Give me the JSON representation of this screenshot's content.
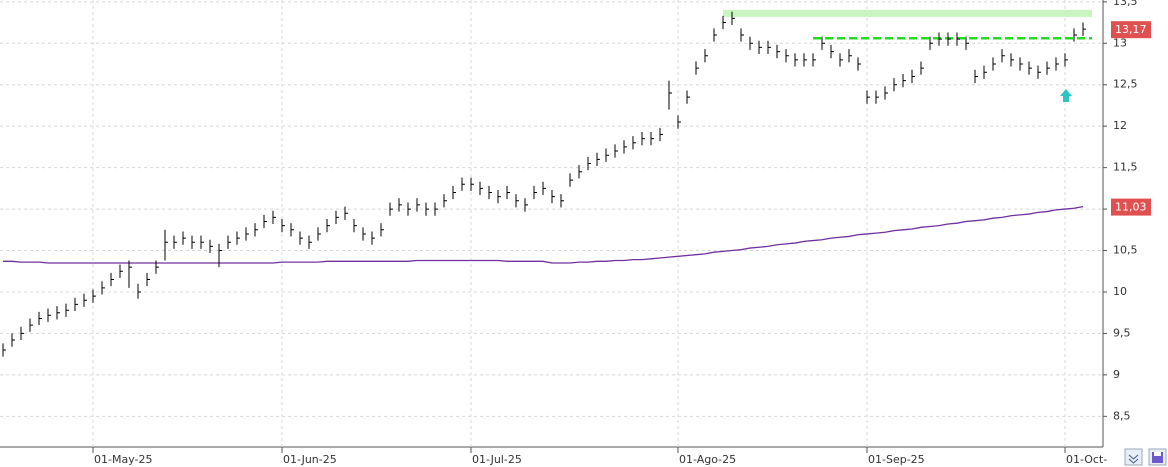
{
  "chart_data": {
    "type": "ohlc",
    "ylim": [
      8.13,
      13.51
    ],
    "yticks": [
      {
        "value": 8.5,
        "label": "8,5"
      },
      9,
      {
        "value": 9.5,
        "label": "9,5"
      },
      10,
      {
        "value": 10.5,
        "label": "10,5"
      },
      11,
      {
        "value": 11.5,
        "label": "11,5"
      },
      12,
      {
        "value": 12.5,
        "label": "12,5"
      },
      13,
      {
        "value": 13.5,
        "label": "13,5"
      }
    ],
    "grid": true,
    "categories": [
      null,
      null,
      null,
      null,
      null,
      null,
      null,
      null,
      null,
      null,
      "01-May-25",
      null,
      null,
      null,
      null,
      null,
      null,
      null,
      null,
      null,
      null,
      null,
      null,
      null,
      null,
      null,
      null,
      null,
      null,
      null,
      null,
      "01-Jun-25",
      null,
      null,
      null,
      null,
      null,
      null,
      null,
      null,
      null,
      null,
      null,
      null,
      null,
      null,
      null,
      null,
      null,
      null,
      null,
      null,
      "01-Jul-25",
      null,
      null,
      null,
      null,
      null,
      null,
      null,
      null,
      null,
      null,
      null,
      null,
      null,
      null,
      null,
      null,
      null,
      null,
      null,
      null,
      null,
      null,
      "01-Ago-25",
      null,
      null,
      null,
      null,
      null,
      null,
      null,
      null,
      null,
      null,
      null,
      null,
      null,
      null,
      null,
      null,
      null,
      null,
      null,
      null,
      "01-Sep-25",
      null,
      null,
      null,
      null,
      null,
      null,
      null,
      null,
      null,
      null,
      null,
      null,
      null,
      null,
      null,
      null,
      null,
      null,
      null,
      null,
      null,
      "01-Oct-",
      null,
      null
    ],
    "ohlc": {
      "color": "#000000",
      "last_label": "13,17",
      "close": [
        9.3,
        9.42,
        9.5,
        9.6,
        9.68,
        9.72,
        9.75,
        9.78,
        9.85,
        9.9,
        9.95,
        10.05,
        10.15,
        10.25,
        10.3,
        10.0,
        10.15,
        10.3,
        10.6,
        10.6,
        10.65,
        10.6,
        10.6,
        10.55,
        10.5,
        10.6,
        10.65,
        10.7,
        10.75,
        10.85,
        10.9,
        10.8,
        10.75,
        10.65,
        10.6,
        10.7,
        10.8,
        10.9,
        10.95,
        10.8,
        10.7,
        10.65,
        10.75,
        11.0,
        11.05,
        11.0,
        11.05,
        11.0,
        11.0,
        11.1,
        11.2,
        11.3,
        11.3,
        11.25,
        11.2,
        11.15,
        11.2,
        11.1,
        11.05,
        11.2,
        11.25,
        11.15,
        11.1,
        11.35,
        11.45,
        11.55,
        11.6,
        11.65,
        11.7,
        11.75,
        11.8,
        11.85,
        11.85,
        11.9,
        12.4,
        12.05,
        12.35,
        12.7,
        12.85,
        13.1,
        13.25,
        13.3,
        13.1,
        13.0,
        12.95,
        12.95,
        12.9,
        12.85,
        12.8,
        12.8,
        12.8,
        13.0,
        12.9,
        12.8,
        12.85,
        12.75,
        12.35,
        12.35,
        12.4,
        12.5,
        12.55,
        12.6,
        12.7,
        13.0,
        13.05,
        13.05,
        13.05,
        13.0,
        12.6,
        12.65,
        12.75,
        12.85,
        12.8,
        12.75,
        12.7,
        12.65,
        12.7,
        12.75,
        12.8,
        13.1,
        13.17
      ],
      "high": [
        9.38,
        9.5,
        9.58,
        9.68,
        9.76,
        9.8,
        9.83,
        9.86,
        9.93,
        9.98,
        10.03,
        10.13,
        10.23,
        10.33,
        10.38,
        10.1,
        10.23,
        10.38,
        10.75,
        10.68,
        10.73,
        10.68,
        10.68,
        10.63,
        10.58,
        10.68,
        10.73,
        10.78,
        10.83,
        10.93,
        10.98,
        10.88,
        10.83,
        10.73,
        10.68,
        10.78,
        10.88,
        10.98,
        11.03,
        10.88,
        10.78,
        10.73,
        10.83,
        11.08,
        11.13,
        11.08,
        11.13,
        11.08,
        11.08,
        11.18,
        11.28,
        11.38,
        11.38,
        11.33,
        11.28,
        11.23,
        11.28,
        11.18,
        11.13,
        11.28,
        11.33,
        11.23,
        11.18,
        11.43,
        11.53,
        11.63,
        11.68,
        11.73,
        11.78,
        11.83,
        11.88,
        11.93,
        11.93,
        11.98,
        12.55,
        12.13,
        12.43,
        12.78,
        12.93,
        13.18,
        13.33,
        13.38,
        13.18,
        13.08,
        13.03,
        13.03,
        12.98,
        12.93,
        12.88,
        12.88,
        12.88,
        13.08,
        12.98,
        12.88,
        12.93,
        12.83,
        12.43,
        12.43,
        12.48,
        12.58,
        12.63,
        12.68,
        12.78,
        13.08,
        13.13,
        13.13,
        13.13,
        13.08,
        12.68,
        12.73,
        12.83,
        12.93,
        12.88,
        12.83,
        12.78,
        12.73,
        12.78,
        12.83,
        12.88,
        13.18,
        13.25
      ],
      "low": [
        9.22,
        9.34,
        9.42,
        9.52,
        9.6,
        9.64,
        9.67,
        9.7,
        9.77,
        9.82,
        9.87,
        9.97,
        10.07,
        10.17,
        10.05,
        9.92,
        10.07,
        10.22,
        10.38,
        10.52,
        10.57,
        10.52,
        10.52,
        10.47,
        10.3,
        10.52,
        10.57,
        10.62,
        10.67,
        10.77,
        10.82,
        10.72,
        10.67,
        10.57,
        10.52,
        10.62,
        10.72,
        10.82,
        10.87,
        10.72,
        10.62,
        10.57,
        10.67,
        10.92,
        10.97,
        10.92,
        10.97,
        10.92,
        10.92,
        11.02,
        11.12,
        11.22,
        11.22,
        11.17,
        11.12,
        11.07,
        11.12,
        11.02,
        10.97,
        11.12,
        11.17,
        11.07,
        11.02,
        11.27,
        11.37,
        11.47,
        11.52,
        11.57,
        11.62,
        11.67,
        11.72,
        11.77,
        11.77,
        11.82,
        12.2,
        11.97,
        12.27,
        12.62,
        12.77,
        13.02,
        13.17,
        13.22,
        13.02,
        12.92,
        12.87,
        12.87,
        12.82,
        12.77,
        12.72,
        12.72,
        12.72,
        12.92,
        12.82,
        12.72,
        12.77,
        12.67,
        12.27,
        12.27,
        12.32,
        12.42,
        12.47,
        12.52,
        12.62,
        12.92,
        12.97,
        12.97,
        12.97,
        12.92,
        12.52,
        12.57,
        12.67,
        12.77,
        12.72,
        12.67,
        12.62,
        12.57,
        12.62,
        12.67,
        12.72,
        13.02,
        13.09
      ]
    },
    "ma": {
      "color": "#7030a0",
      "last_label": "11,03",
      "values": [
        10.37,
        10.37,
        10.36,
        10.36,
        10.36,
        10.35,
        10.35,
        10.35,
        10.35,
        10.35,
        10.35,
        10.35,
        10.35,
        10.35,
        10.35,
        10.35,
        10.35,
        10.35,
        10.35,
        10.35,
        10.35,
        10.35,
        10.35,
        10.35,
        10.35,
        10.35,
        10.35,
        10.35,
        10.35,
        10.35,
        10.35,
        10.36,
        10.36,
        10.36,
        10.36,
        10.36,
        10.37,
        10.37,
        10.37,
        10.37,
        10.37,
        10.37,
        10.37,
        10.37,
        10.37,
        10.37,
        10.38,
        10.38,
        10.38,
        10.38,
        10.38,
        10.38,
        10.38,
        10.38,
        10.38,
        10.38,
        10.37,
        10.37,
        10.37,
        10.37,
        10.37,
        10.35,
        10.35,
        10.35,
        10.36,
        10.36,
        10.37,
        10.37,
        10.38,
        10.38,
        10.39,
        10.39,
        10.4,
        10.41,
        10.42,
        10.43,
        10.44,
        10.45,
        10.46,
        10.48,
        10.49,
        10.5,
        10.51,
        10.53,
        10.54,
        10.55,
        10.57,
        10.58,
        10.59,
        10.61,
        10.62,
        10.63,
        10.65,
        10.66,
        10.67,
        10.69,
        10.7,
        10.71,
        10.72,
        10.74,
        10.75,
        10.76,
        10.78,
        10.79,
        10.8,
        10.82,
        10.83,
        10.85,
        10.86,
        10.87,
        10.89,
        10.9,
        10.92,
        10.93,
        10.94,
        10.96,
        10.97,
        10.99,
        11.0,
        11.01,
        11.03
      ]
    },
    "resistance_zone": {
      "value": 13.36,
      "color": "#c8f5c0"
    },
    "resistance_line": {
      "value": 13.06,
      "color": "#22dd22"
    }
  }
}
